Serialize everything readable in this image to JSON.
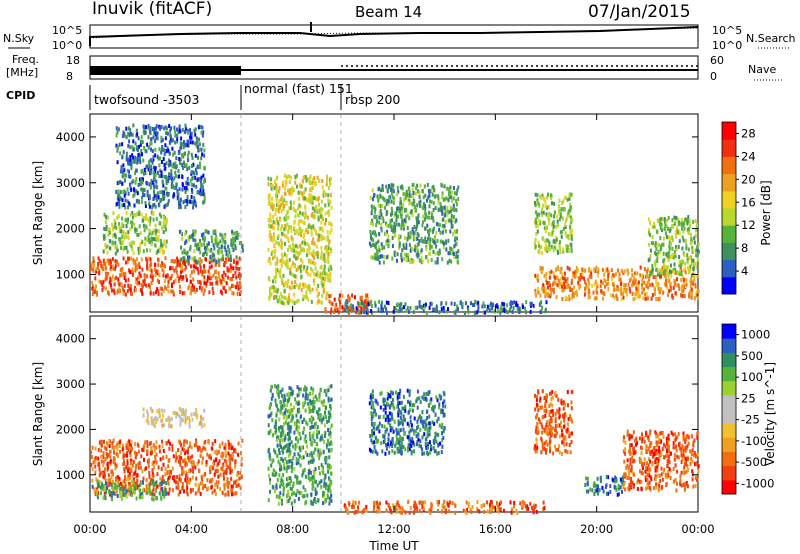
{
  "header": {
    "station": "Inuvik (fitACF)",
    "beam": "Beam 14",
    "date": "07/Jan/2015"
  },
  "side_labels": {
    "nsky": "N.Sky",
    "freq_line1": "Freq.",
    "freq_line2": "[MHz]",
    "cpid": "CPID",
    "nsearch": "N.Search",
    "nave": "Nave"
  },
  "noise_panel": {
    "left_ticks": [
      "10^5",
      "10^0"
    ],
    "right_ticks": [
      "10^5",
      "10^0"
    ]
  },
  "freq_panel": {
    "left_ticks": [
      "18",
      "8"
    ],
    "right_ticks": [
      "60",
      "0"
    ]
  },
  "cpid_panel": {
    "segments": [
      {
        "label": "twofsound -3503",
        "start_hr": 0,
        "end_hr": 6
      },
      {
        "label": "normal (fast) 151",
        "start_hr": 6,
        "end_hr": 10
      },
      {
        "label": "rbsp 200",
        "start_hr": 10,
        "end_hr": 24
      }
    ]
  },
  "colors": {
    "power_scale": [
      "#0000ff",
      "#2c5fbf",
      "#3f8f5f",
      "#55b33c",
      "#b8d830",
      "#f0d020",
      "#f0a020",
      "#f07010",
      "#f03010",
      "#ff0000"
    ],
    "velocity_scale": [
      "#ff0000",
      "#f04010",
      "#f07010",
      "#f0a020",
      "#f0c030",
      "#c0c0c0",
      "#c0c0c0",
      "#9ad030",
      "#55b33c",
      "#2f8f5f",
      "#2c5fbf",
      "#0000ff"
    ]
  },
  "chart_data": [
    {
      "type": "heatmap",
      "name": "power",
      "xlabel": "",
      "ylabel": "Slant Range [km]",
      "xlim": [
        0,
        24
      ],
      "ylim": [
        180,
        4500
      ],
      "y_ticks": [
        "1000",
        "2000",
        "3000",
        "4000"
      ],
      "colorbar": {
        "label": "Power [dB]",
        "ticks": [
          "4",
          "8",
          "12",
          "16",
          "20",
          "24",
          "28"
        ],
        "range": [
          0,
          30
        ]
      },
      "echo_regions": [
        {
          "t_start": 0.0,
          "t_end": 6.0,
          "r_low": 600,
          "r_high": 1400,
          "value": 27
        },
        {
          "t_start": 0.5,
          "t_end": 3.0,
          "r_low": 1500,
          "r_high": 2400,
          "value": 14
        },
        {
          "t_start": 3.5,
          "t_end": 6.0,
          "r_low": 1300,
          "r_high": 2000,
          "value": 10
        },
        {
          "t_start": 1.0,
          "t_end": 4.5,
          "r_low": 2500,
          "r_high": 4300,
          "value": 8
        },
        {
          "t_start": 7.0,
          "t_end": 9.5,
          "r_low": 400,
          "r_high": 3200,
          "value": 18
        },
        {
          "t_start": 9.2,
          "t_end": 11.0,
          "r_low": 200,
          "r_high": 600,
          "value": 25
        },
        {
          "t_start": 10.0,
          "t_end": 18.0,
          "r_low": 200,
          "r_high": 450,
          "value": 6
        },
        {
          "t_start": 11.0,
          "t_end": 14.5,
          "r_low": 1300,
          "r_high": 3000,
          "value": 9
        },
        {
          "t_start": 17.5,
          "t_end": 24.0,
          "r_low": 500,
          "r_high": 1200,
          "value": 22
        },
        {
          "t_start": 17.5,
          "t_end": 19.0,
          "r_low": 1500,
          "r_high": 2800,
          "value": 14
        },
        {
          "t_start": 22.0,
          "t_end": 24.0,
          "r_low": 1000,
          "r_high": 2300,
          "value": 12
        }
      ]
    },
    {
      "type": "heatmap",
      "name": "velocity",
      "xlabel": "Time UT",
      "ylabel": "Slant Range [km]",
      "xlim": [
        0,
        24
      ],
      "ylim": [
        180,
        4500
      ],
      "x_ticks": [
        "00:00",
        "04:00",
        "08:00",
        "12:00",
        "16:00",
        "20:00",
        "00:00"
      ],
      "y_ticks": [
        "1000",
        "2000",
        "3000",
        "4000"
      ],
      "colorbar": {
        "label": "Velocity [m s^-1]",
        "ticks": [
          "1000",
          "500",
          "100",
          "25",
          "-25",
          "-100",
          "-500",
          "-1000"
        ]
      },
      "echo_regions": [
        {
          "t_start": 0.0,
          "t_end": 6.0,
          "r_low": 600,
          "r_high": 1800,
          "value": -300
        },
        {
          "t_start": 0.0,
          "t_end": 3.0,
          "r_low": 500,
          "r_high": 900,
          "value": 120
        },
        {
          "t_start": 2.0,
          "t_end": 4.5,
          "r_low": 2100,
          "r_high": 2500,
          "value": 0
        },
        {
          "t_start": 7.0,
          "t_end": 9.5,
          "r_low": 400,
          "r_high": 3000,
          "value": 150
        },
        {
          "t_start": 10.0,
          "t_end": 18.0,
          "r_low": 200,
          "r_high": 450,
          "value": -120
        },
        {
          "t_start": 11.0,
          "t_end": 14.0,
          "r_low": 1500,
          "r_high": 2900,
          "value": 700
        },
        {
          "t_start": 17.5,
          "t_end": 19.0,
          "r_low": 1500,
          "r_high": 2900,
          "value": -200
        },
        {
          "t_start": 19.5,
          "t_end": 21.0,
          "r_low": 600,
          "r_high": 1000,
          "value": 900
        },
        {
          "t_start": 21.0,
          "t_end": 24.0,
          "r_low": 700,
          "r_high": 2000,
          "value": -350
        }
      ]
    }
  ]
}
